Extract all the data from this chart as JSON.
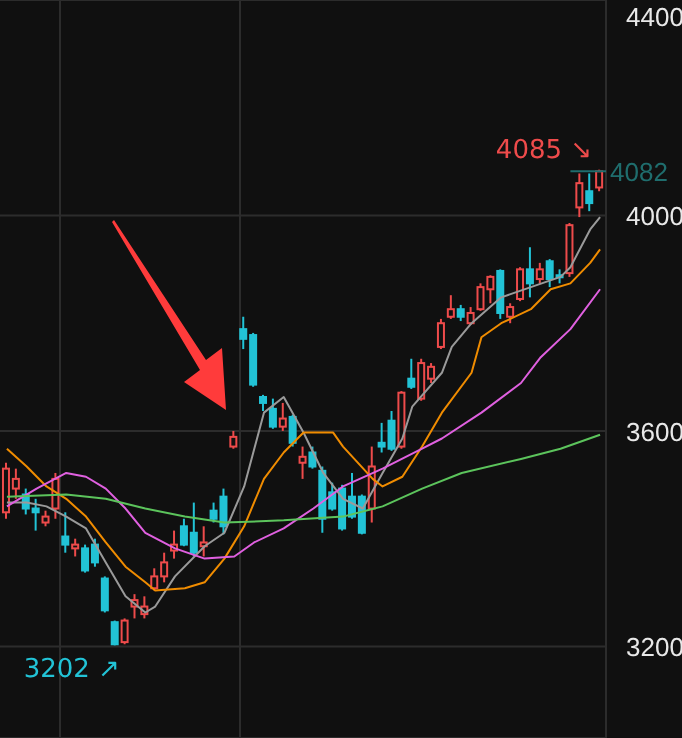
{
  "chart_data": {
    "type": "candlestick",
    "categories": [
      null,
      null,
      null,
      null,
      null,
      null,
      null,
      null,
      null,
      null,
      null,
      null,
      null,
      null,
      null,
      null,
      null,
      null,
      null,
      null,
      null,
      null,
      null,
      null,
      null,
      null,
      null,
      null,
      null,
      null,
      null,
      null,
      null,
      null,
      null,
      null,
      null,
      null,
      null,
      null,
      null,
      null,
      null,
      null,
      null,
      null,
      null,
      null,
      null,
      null,
      null,
      null,
      null,
      null,
      null,
      null,
      null,
      null,
      null,
      null,
      null
    ],
    "ohlc": [
      [
        3449,
        3541,
        3437,
        3530
      ],
      [
        3493,
        3530,
        3474,
        3511
      ],
      [
        3482,
        3493,
        3445,
        3456
      ],
      [
        3456,
        3474,
        3415,
        3449
      ],
      [
        3430,
        3452,
        3423,
        3441
      ],
      [
        3456,
        3522,
        3437,
        3511
      ],
      [
        3404,
        3449,
        3374,
        3389
      ],
      [
        3382,
        3400,
        3367,
        3389
      ],
      [
        3382,
        3389,
        3337,
        3341
      ],
      [
        3389,
        3400,
        3348,
        3356
      ],
      [
        3326,
        3330,
        3263,
        3267
      ],
      [
        3245,
        3248,
        3202,
        3204
      ],
      [
        3208,
        3252,
        3204,
        3248
      ],
      [
        3274,
        3297,
        3252,
        3286
      ],
      [
        3260,
        3293,
        3252,
        3274
      ],
      [
        3308,
        3345,
        3304,
        3330
      ],
      [
        3330,
        3374,
        3319,
        3356
      ],
      [
        3378,
        3415,
        3363,
        3389
      ],
      [
        3423,
        3437,
        3386,
        3389
      ],
      [
        3411,
        3467,
        3367,
        3374
      ],
      [
        3386,
        3423,
        3367,
        3393
      ],
      [
        3452,
        3467,
        3430,
        3437
      ],
      [
        3478,
        3493,
        3408,
        3423
      ],
      [
        3571,
        3600,
        3567,
        3589
      ],
      [
        3789,
        3812,
        3752,
        3771
      ],
      [
        3778,
        3782,
        3682,
        3686
      ],
      [
        3663,
        3667,
        3637,
        3652
      ],
      [
        3641,
        3660,
        3604,
        3608
      ],
      [
        3608,
        3652,
        3600,
        3623
      ],
      [
        3626,
        3630,
        3571,
        3578
      ],
      [
        3541,
        3571,
        3511,
        3552
      ],
      [
        3560,
        3571,
        3530,
        3534
      ],
      [
        3526,
        3534,
        3411,
        3437
      ],
      [
        3486,
        3504,
        3452,
        3456
      ],
      [
        3493,
        3500,
        3415,
        3419
      ],
      [
        3478,
        3522,
        3437,
        3441
      ],
      [
        3478,
        3482,
        3408,
        3411
      ],
      [
        3456,
        3571,
        3430,
        3534
      ],
      [
        3578,
        3615,
        3560,
        3571
      ],
      [
        3619,
        3637,
        3563,
        3567
      ],
      [
        3571,
        3674,
        3567,
        3671
      ],
      [
        3697,
        3734,
        3678,
        3682
      ],
      [
        3660,
        3734,
        3656,
        3726
      ],
      [
        3697,
        3726,
        3689,
        3719
      ],
      [
        3756,
        3808,
        3752,
        3800
      ],
      [
        3812,
        3852,
        3808,
        3826
      ],
      [
        3826,
        3834,
        3804,
        3812
      ],
      [
        3800,
        3830,
        3797,
        3819
      ],
      [
        3826,
        3874,
        3823,
        3867
      ],
      [
        3863,
        3889,
        3837,
        3886
      ],
      [
        3897,
        3900,
        3808,
        3819
      ],
      [
        3812,
        3837,
        3800,
        3830
      ],
      [
        3845,
        3904,
        3841,
        3900
      ],
      [
        3900,
        3941,
        3848,
        3874
      ],
      [
        3882,
        3912,
        3874,
        3900
      ],
      [
        3915,
        3919,
        3867,
        3882
      ],
      [
        3889,
        3900,
        3874,
        3886
      ],
      [
        3893,
        3986,
        3886,
        3982
      ],
      [
        4015,
        4078,
        3997,
        4060
      ],
      [
        4045,
        4078,
        4008,
        4023
      ],
      [
        4052,
        4085,
        4045,
        4082
      ]
    ],
    "colors": [
      "#ee4b4b",
      "#ee4b4b",
      "#22c3d6",
      "#22c3d6",
      "#ee4b4b",
      "#ee4b4b",
      "#22c3d6",
      "#ee4b4b",
      "#22c3d6",
      "#22c3d6",
      "#22c3d6",
      "#22c3d6",
      "#ee4b4b",
      "#ee4b4b",
      "#ee4b4b",
      "#ee4b4b",
      "#ee4b4b",
      "#ee4b4b",
      "#22c3d6",
      "#22c3d6",
      "#ee4b4b",
      "#22c3d6",
      "#22c3d6",
      "#ee4b4b",
      "#22c3d6",
      "#22c3d6",
      "#22c3d6",
      "#22c3d6",
      "#ee4b4b",
      "#22c3d6",
      "#ee4b4b",
      "#22c3d6",
      "#22c3d6",
      "#22c3d6",
      "#22c3d6",
      "#22c3d6",
      "#22c3d6",
      "#ee4b4b",
      "#22c3d6",
      "#22c3d6",
      "#ee4b4b",
      "#22c3d6",
      "#ee4b4b",
      "#ee4b4b",
      "#ee4b4b",
      "#ee4b4b",
      "#22c3d6",
      "#ee4b4b",
      "#ee4b4b",
      "#ee4b4b",
      "#22c3d6",
      "#ee4b4b",
      "#ee4b4b",
      "#22c3d6",
      "#ee4b4b",
      "#22c3d6",
      "#22c3d6",
      "#ee4b4b",
      "#ee4b4b",
      "#22c3d6",
      "#ee4b4b"
    ],
    "series": [
      {
        "type": "line",
        "color": "#9a9a9a",
        "values": [
          3467,
          null,
          3467,
          null,
          3460,
          null,
          3441,
          null,
          3419,
          null,
          3356,
          null,
          3293,
          null,
          3263,
          3274,
          null,
          3330,
          null,
          null,
          3386,
          null,
          3411,
          null,
          3497,
          null,
          3634,
          null,
          3663,
          null,
          3597,
          null,
          3522,
          null,
          3474,
          null,
          3456,
          null,
          3522,
          null,
          3586,
          3645,
          null,
          null,
          3708,
          3756,
          null,
          3800,
          null,
          null,
          3848,
          null,
          null,
          3867,
          null,
          null,
          3886,
          3904,
          null,
          3974,
          3997
        ]
      },
      {
        "type": "line",
        "color": "#f08c00",
        "values": [
          3567,
          null,
          3534,
          null,
          3497,
          null,
          3474,
          null,
          3441,
          null,
          3393,
          null,
          3348,
          null,
          3319,
          3304,
          null,
          null,
          3308,
          null,
          3319,
          null,
          3363,
          null,
          3423,
          null,
          3511,
          null,
          3560,
          null,
          3597,
          null,
          null,
          3597,
          3571,
          null,
          null,
          3511,
          3497,
          null,
          3515,
          null,
          3571,
          null,
          3634,
          null,
          null,
          3708,
          3774,
          null,
          3800,
          null,
          null,
          3826,
          null,
          3863,
          null,
          3874,
          null,
          3912,
          3937
        ]
      },
      {
        "type": "line",
        "color": "#e060e0",
        "values": [
          3460,
          null,
          null,
          3493,
          null,
          null,
          3522,
          null,
          3515,
          null,
          3493,
          null,
          3456,
          null,
          3411,
          null,
          null,
          3382,
          null,
          null,
          3363,
          null,
          null,
          3367,
          null,
          3393,
          null,
          null,
          3419,
          null,
          null,
          3456,
          null,
          null,
          3497,
          null,
          null,
          null,
          3530,
          null,
          null,
          null,
          3567,
          null,
          3586,
          null,
          null,
          null,
          3634,
          null,
          null,
          null,
          3689,
          null,
          3737,
          null,
          null,
          3789,
          null,
          null,
          3863
        ]
      },
      {
        "type": "line",
        "color": "#5cc45c",
        "values": [
          3478,
          null,
          null,
          null,
          null,
          null,
          3482,
          null,
          null,
          null,
          3474,
          null,
          null,
          null,
          3456,
          null,
          null,
          null,
          3441,
          null,
          null,
          null,
          3430,
          null,
          null,
          null,
          null,
          null,
          3434,
          null,
          null,
          null,
          null,
          null,
          3441,
          null,
          null,
          null,
          3460,
          null,
          null,
          null,
          3493,
          null,
          null,
          null,
          3522,
          null,
          null,
          null,
          null,
          null,
          3548,
          null,
          null,
          null,
          3567,
          null,
          null,
          null,
          3593
        ]
      }
    ],
    "ylim": [
      3030,
      4400
    ],
    "yticks": [
      3200,
      3600,
      4000,
      4400
    ],
    "grid": true,
    "ref_lines": [
      {
        "axis": "y",
        "value": 4082,
        "label": "4082",
        "color": "#1f6d6d"
      }
    ],
    "annotations": [
      "4085 ↘",
      "3202 ↗"
    ]
  }
}
